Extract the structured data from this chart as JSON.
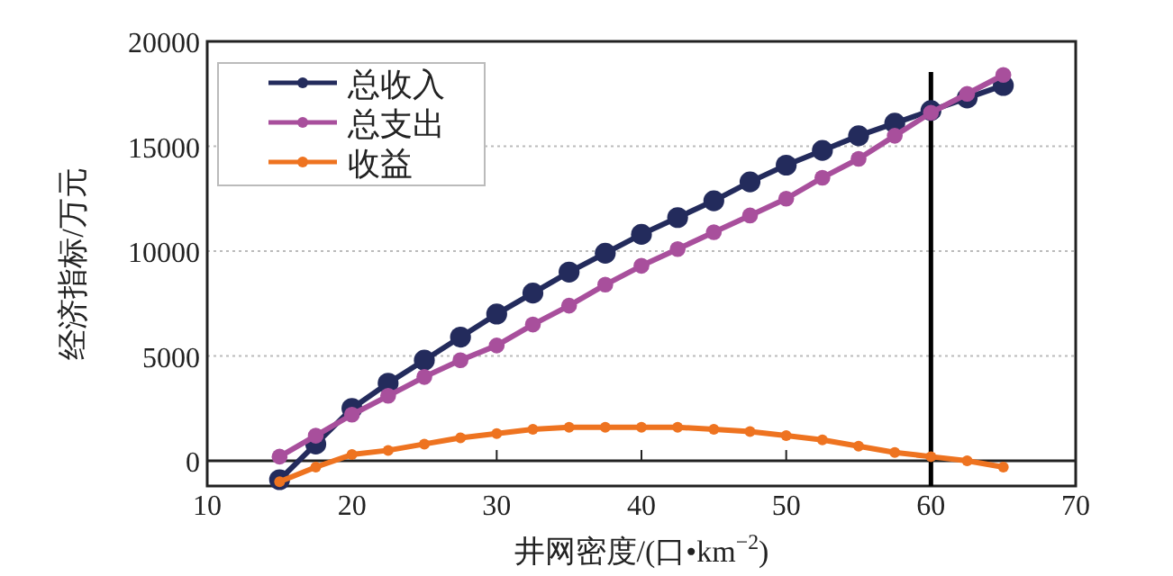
{
  "chart_data": {
    "type": "line",
    "xlabel": "井网密度/(口•km$^{−2}$)",
    "ylabel": "经济指标/万元",
    "xlim": [
      10,
      70
    ],
    "xticks": [
      10,
      20,
      30,
      40,
      50,
      60,
      70
    ],
    "ylim": [
      -1200,
      20000
    ],
    "yticks": [
      0,
      5000,
      10000,
      15000,
      20000
    ],
    "grid": "y",
    "legend": "top left",
    "marker": "circle",
    "x": [
      15,
      17.5,
      20,
      22.5,
      25,
      27.5,
      30,
      32.5,
      35,
      37.5,
      40,
      42.5,
      45,
      47.5,
      50,
      52.5,
      55,
      57.5,
      60,
      62.5,
      65
    ],
    "series": [
      {
        "name": "总收入",
        "color": "#232b5c",
        "values": [
          -900,
          800,
          2500,
          3700,
          4800,
          5900,
          7000,
          8000,
          9000,
          9900,
          10800,
          11600,
          12400,
          13300,
          14100,
          14800,
          15500,
          16100,
          16700,
          17300,
          17900
        ]
      },
      {
        "name": "总支出",
        "color": "#a84f9c",
        "values": [
          200,
          1200,
          2200,
          3100,
          4000,
          4800,
          5500,
          6500,
          7400,
          8400,
          9300,
          10100,
          10900,
          11700,
          12500,
          13500,
          14400,
          15500,
          16600,
          17500,
          18400
        ]
      },
      {
        "name": "收益",
        "color": "#ee7320",
        "values": [
          -1000,
          -300,
          300,
          500,
          800,
          1100,
          1300,
          1500,
          1600,
          1600,
          1600,
          1600,
          1500,
          1400,
          1200,
          1000,
          700,
          400,
          200,
          0,
          -300
        ]
      }
    ],
    "ref_lines": [
      {
        "axis": "x",
        "value": 60,
        "color": "#000000"
      }
    ]
  }
}
